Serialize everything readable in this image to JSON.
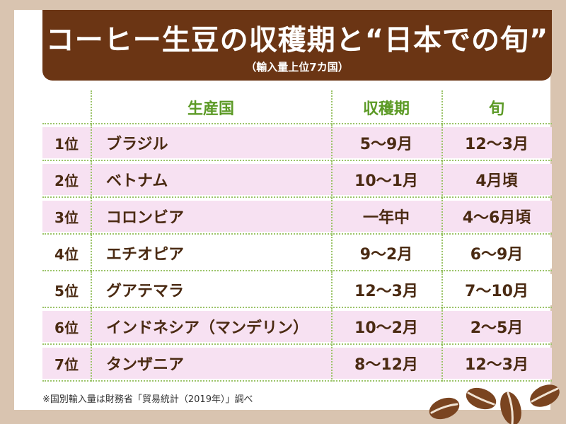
{
  "title": "コーヒー生豆の収穫期と“日本での旬”",
  "subtitle": "（輸入量上位7カ国）",
  "columns": {
    "country": "生産国",
    "harvest": "収穫期",
    "peak": "旬"
  },
  "rows": [
    {
      "rank": "1位",
      "country": "ブラジル",
      "harvest": "5〜9月",
      "peak": "12〜3月"
    },
    {
      "rank": "2位",
      "country": "ベトナム",
      "harvest": "10〜1月",
      "peak": "4月頃"
    },
    {
      "rank": "3位",
      "country": "コロンビア",
      "harvest": "一年中",
      "peak": "4〜6月頃"
    },
    {
      "rank": "4位",
      "country": "エチオピア",
      "harvest": "9〜2月",
      "peak": "6〜9月"
    },
    {
      "rank": "5位",
      "country": "グアテマラ",
      "harvest": "12〜3月",
      "peak": "7〜10月"
    },
    {
      "rank": "6位",
      "country": "インドネシア（マンデリン）",
      "harvest": "10〜2月",
      "peak": "2〜5月"
    },
    {
      "rank": "7位",
      "country": "タンザニア",
      "harvest": "8〜12月",
      "peak": "12〜3月"
    }
  ],
  "footnote": "※国別輸入量は財務省「貿易統計（2019年）」調べ",
  "colors": {
    "title_band": "#6b3514",
    "header_text": "#5c9a26",
    "body_text": "#4a2a12",
    "stripe": "#f7e1f2",
    "background": "#d9c4b0"
  },
  "icons": [
    "coffee-bean-icon"
  ]
}
